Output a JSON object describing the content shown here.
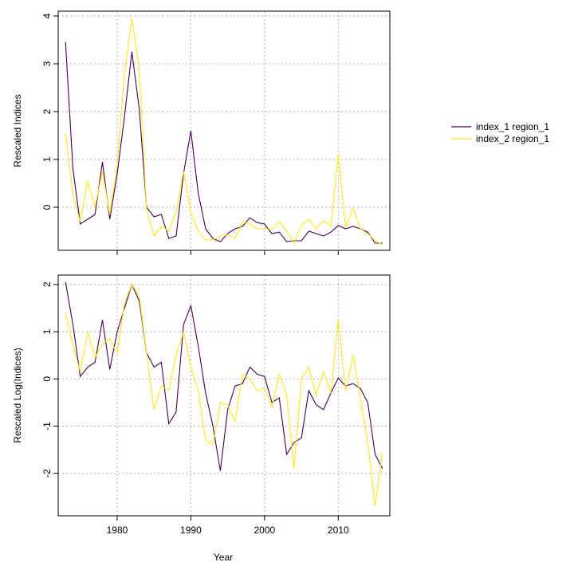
{
  "chart_data": [
    {
      "type": "line",
      "ylabel": "Rescaled Indices",
      "xlabel": "",
      "xlim": [
        1972,
        2017
      ],
      "ylim": [
        -0.9,
        4.1
      ],
      "xticks": [
        1980,
        1990,
        2000,
        2010
      ],
      "yticks": [
        0,
        1,
        2,
        3,
        4
      ],
      "ytick_labels": [
        "0",
        "1",
        "2",
        "3",
        "4"
      ],
      "grid": true,
      "x": [
        1973,
        1974,
        1975,
        1976,
        1977,
        1978,
        1979,
        1980,
        1981,
        1982,
        1983,
        1984,
        1985,
        1986,
        1987,
        1988,
        1989,
        1990,
        1991,
        1992,
        1993,
        1994,
        1995,
        1996,
        1997,
        1998,
        1999,
        2000,
        2001,
        2002,
        2003,
        2004,
        2005,
        2006,
        2007,
        2008,
        2009,
        2010,
        2011,
        2012,
        2013,
        2014,
        2015,
        2016
      ],
      "series": [
        {
          "name": "index_1 region_1",
          "color": "#440154",
          "values": [
            3.45,
            0.8,
            -0.35,
            -0.25,
            -0.15,
            0.95,
            -0.25,
            0.7,
            1.9,
            3.25,
            2.05,
            0.0,
            -0.2,
            -0.15,
            -0.65,
            -0.6,
            0.7,
            1.6,
            0.3,
            -0.45,
            -0.65,
            -0.72,
            -0.55,
            -0.45,
            -0.4,
            -0.22,
            -0.32,
            -0.35,
            -0.55,
            -0.52,
            -0.72,
            -0.7,
            -0.7,
            -0.5,
            -0.55,
            -0.6,
            -0.52,
            -0.38,
            -0.45,
            -0.4,
            -0.45,
            -0.52,
            -0.75,
            -0.75
          ]
        },
        {
          "name": "index_2 region_1",
          "color": "#fde725",
          "values": [
            1.55,
            0.25,
            -0.3,
            0.55,
            0.0,
            0.75,
            -0.15,
            0.9,
            2.8,
            3.95,
            2.9,
            -0.05,
            -0.6,
            -0.4,
            -0.5,
            -0.1,
            0.75,
            -0.1,
            -0.5,
            -0.68,
            -0.68,
            -0.6,
            -0.58,
            -0.65,
            -0.3,
            -0.35,
            -0.45,
            -0.45,
            -0.45,
            -0.3,
            -0.5,
            -0.75,
            -0.38,
            -0.25,
            -0.45,
            -0.28,
            -0.4,
            1.1,
            -0.42,
            -0.02,
            -0.45,
            -0.55,
            -0.7,
            -0.78
          ]
        }
      ]
    },
    {
      "type": "line",
      "ylabel": "Rescaled Log(Indices)",
      "xlabel": "Year",
      "xlim": [
        1972,
        2017
      ],
      "ylim": [
        -2.9,
        2.2
      ],
      "xticks": [
        1980,
        1990,
        2000,
        2010
      ],
      "xtick_labels": [
        "1980",
        "1990",
        "2000",
        "2010"
      ],
      "yticks": [
        -2,
        -1,
        0,
        1,
        2
      ],
      "ytick_labels": [
        "-2",
        "-1",
        "0",
        "1",
        "2"
      ],
      "grid": true,
      "x": [
        1973,
        1974,
        1975,
        1976,
        1977,
        1978,
        1979,
        1980,
        1981,
        1982,
        1983,
        1984,
        1985,
        1986,
        1987,
        1988,
        1989,
        1990,
        1991,
        1992,
        1993,
        1994,
        1995,
        1996,
        1997,
        1998,
        1999,
        2000,
        2001,
        2002,
        2003,
        2004,
        2005,
        2006,
        2007,
        2008,
        2009,
        2010,
        2011,
        2012,
        2013,
        2014,
        2015,
        2016
      ],
      "series": [
        {
          "name": "index_1 region_1",
          "color": "#440154",
          "values": [
            2.05,
            1.15,
            0.05,
            0.25,
            0.35,
            1.25,
            0.2,
            1.0,
            1.5,
            2.0,
            1.65,
            0.55,
            0.25,
            0.35,
            -0.95,
            -0.7,
            1.15,
            1.55,
            0.7,
            -0.3,
            -1.0,
            -1.95,
            -0.65,
            -0.15,
            -0.1,
            0.25,
            0.1,
            0.05,
            -0.5,
            -0.4,
            -1.6,
            -1.35,
            -1.25,
            -0.25,
            -0.55,
            -0.65,
            -0.3,
            0.02,
            -0.15,
            -0.1,
            -0.2,
            -0.5,
            -1.6,
            -1.9
          ]
        },
        {
          "name": "index_2 region_1",
          "color": "#fde725",
          "values": [
            1.4,
            0.7,
            0.15,
            1.0,
            0.45,
            0.75,
            0.85,
            0.55,
            1.6,
            2.0,
            1.75,
            0.55,
            -0.65,
            -0.15,
            -0.25,
            0.5,
            1.0,
            0.25,
            -0.25,
            -1.3,
            -1.4,
            -0.5,
            -0.55,
            -0.9,
            0.1,
            0.0,
            -0.25,
            -0.2,
            -0.6,
            0.1,
            -0.35,
            -1.9,
            0.0,
            0.25,
            -0.35,
            0.15,
            -0.3,
            1.25,
            -0.25,
            0.5,
            -0.4,
            -1.35,
            -2.7,
            -1.55
          ]
        }
      ]
    }
  ],
  "legend": {
    "items": [
      {
        "label": "index_1 region_1",
        "color": "#440154"
      },
      {
        "label": "index_2 region_1",
        "color": "#fde725"
      }
    ],
    "position": "right"
  }
}
